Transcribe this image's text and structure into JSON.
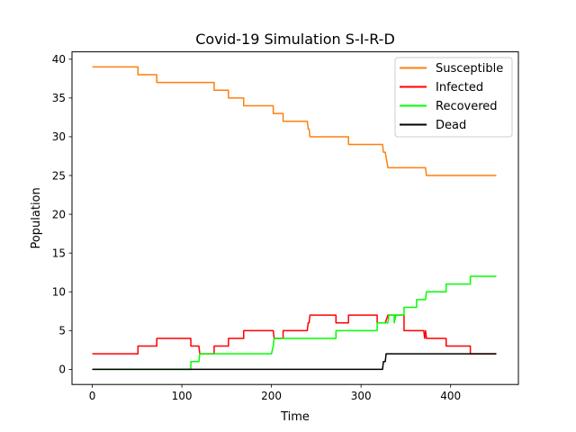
{
  "chart_data": {
    "type": "line",
    "title": "Covid-19 Simulation S-I-R-D",
    "xlabel": "Time",
    "ylabel": "Population",
    "xlim": [
      -22.65,
      475.65
    ],
    "ylim": [
      -1.95,
      40.95
    ],
    "xticks": [
      0,
      100,
      200,
      300,
      400
    ],
    "yticks": [
      0,
      5,
      10,
      15,
      20,
      25,
      30,
      35,
      40
    ],
    "grid": false,
    "legend_position": "top-right",
    "series": [
      {
        "name": "Susceptible",
        "color": "#ff7f0e",
        "points": [
          [
            0,
            39
          ],
          [
            51,
            39
          ],
          [
            51,
            38
          ],
          [
            72,
            38
          ],
          [
            72,
            37
          ],
          [
            136,
            37
          ],
          [
            136,
            36
          ],
          [
            152,
            36
          ],
          [
            152,
            35
          ],
          [
            169,
            35
          ],
          [
            169,
            34
          ],
          [
            202,
            34
          ],
          [
            202,
            33
          ],
          [
            213,
            33
          ],
          [
            213,
            32
          ],
          [
            240,
            32
          ],
          [
            241,
            31
          ],
          [
            242,
            31
          ],
          [
            243,
            30
          ],
          [
            286,
            30
          ],
          [
            286,
            29
          ],
          [
            324,
            29
          ],
          [
            325,
            28
          ],
          [
            327,
            28
          ],
          [
            330,
            26
          ],
          [
            372,
            26
          ],
          [
            373,
            25
          ],
          [
            451,
            25
          ]
        ]
      },
      {
        "name": "Infected",
        "color": "#ff0000",
        "points": [
          [
            0,
            2
          ],
          [
            51,
            2
          ],
          [
            51,
            3
          ],
          [
            72,
            3
          ],
          [
            72,
            4
          ],
          [
            110,
            4
          ],
          [
            110,
            3
          ],
          [
            119,
            3
          ],
          [
            120,
            2
          ],
          [
            136,
            2
          ],
          [
            136,
            3
          ],
          [
            152,
            3
          ],
          [
            152,
            4
          ],
          [
            169,
            4
          ],
          [
            169,
            5
          ],
          [
            202,
            5
          ],
          [
            203,
            4
          ],
          [
            213,
            4
          ],
          [
            213,
            5
          ],
          [
            240,
            5
          ],
          [
            241,
            6
          ],
          [
            242,
            6
          ],
          [
            243,
            7
          ],
          [
            272,
            7
          ],
          [
            272,
            6
          ],
          [
            286,
            6
          ],
          [
            286,
            7
          ],
          [
            318,
            7
          ],
          [
            318,
            6
          ],
          [
            327,
            6
          ],
          [
            330,
            7
          ],
          [
            348,
            7
          ],
          [
            348,
            5
          ],
          [
            370,
            5
          ],
          [
            371,
            4
          ],
          [
            372,
            5
          ],
          [
            373,
            4
          ],
          [
            395,
            4
          ],
          [
            395,
            3
          ],
          [
            422,
            3
          ],
          [
            422,
            2
          ],
          [
            451,
            2
          ]
        ]
      },
      {
        "name": "Recovered",
        "color": "#00ff00",
        "points": [
          [
            0,
            0
          ],
          [
            110,
            0
          ],
          [
            110,
            1
          ],
          [
            119,
            1
          ],
          [
            120,
            2
          ],
          [
            200,
            2
          ],
          [
            202,
            3
          ],
          [
            203,
            4
          ],
          [
            272,
            4
          ],
          [
            272,
            5
          ],
          [
            318,
            5
          ],
          [
            318,
            6
          ],
          [
            330,
            6
          ],
          [
            331,
            7
          ],
          [
            337,
            7
          ],
          [
            337,
            6
          ],
          [
            339,
            7
          ],
          [
            348,
            7
          ],
          [
            348,
            8
          ],
          [
            362,
            8
          ],
          [
            362,
            9
          ],
          [
            372,
            9
          ],
          [
            373,
            10
          ],
          [
            395,
            10
          ],
          [
            395,
            11
          ],
          [
            422,
            11
          ],
          [
            422,
            12
          ],
          [
            451,
            12
          ]
        ]
      },
      {
        "name": "Dead",
        "color": "#000000",
        "points": [
          [
            0,
            0
          ],
          [
            324,
            0
          ],
          [
            325,
            1
          ],
          [
            327,
            1
          ],
          [
            328,
            2
          ],
          [
            451,
            2
          ]
        ]
      }
    ]
  }
}
